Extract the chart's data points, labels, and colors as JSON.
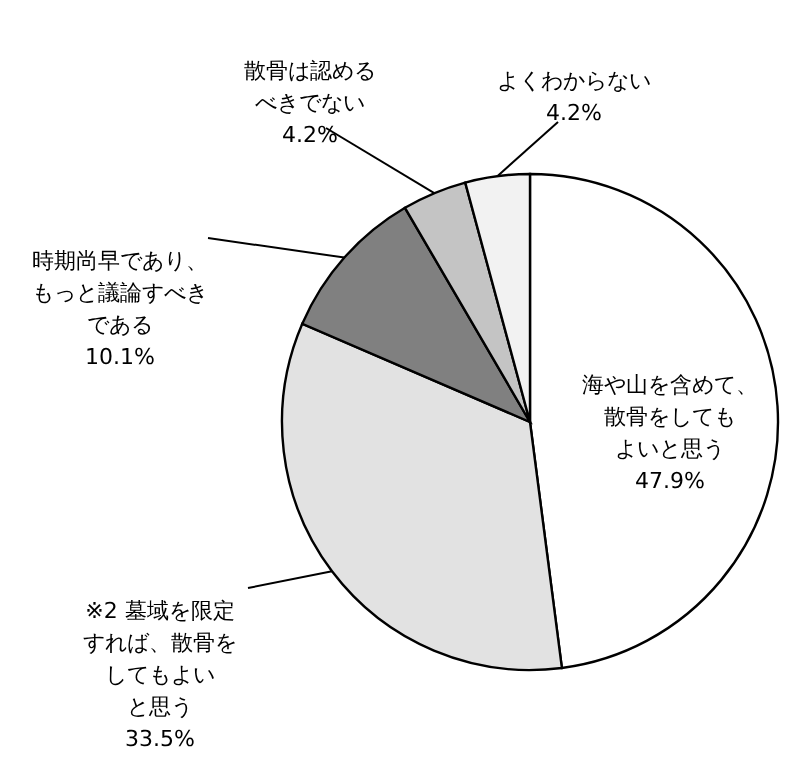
{
  "chart_data": {
    "type": "pie",
    "categories": [
      "海や山を含めて、散骨をしてもよいと思う",
      "※2  墓域を限定すれば、散骨をしてもよいと思う",
      "時期尚早であり、もっと議論すべきである",
      "散骨は認めるべきでない",
      "よくわからない"
    ],
    "values": [
      47.9,
      33.5,
      10.1,
      4.2,
      4.2
    ],
    "value_labels": [
      "47.9%",
      "33.5%",
      "10.1%",
      "4.2%",
      "4.2%"
    ],
    "colors": [
      "#ffffff",
      "#e2e2e2",
      "#808080",
      "#c4c4c4",
      "#f2f2f2"
    ]
  }
}
